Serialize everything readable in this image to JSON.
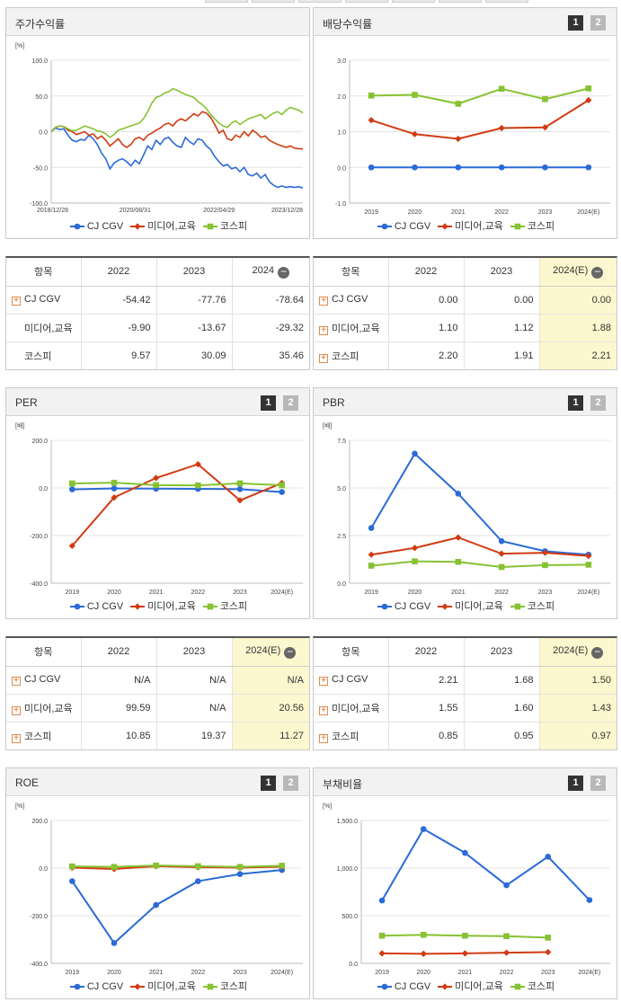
{
  "colors": {
    "cjcgv": "#2a6ad8",
    "media": "#d13b12",
    "kospi": "#86c232"
  },
  "legend": [
    "CJ CGV",
    "미디어,교육",
    "코스피"
  ],
  "stock_return": {
    "title": "주가수익률",
    "unit": "[%]",
    "table": {
      "header": [
        "항목",
        "2022",
        "2023",
        "2024"
      ],
      "rows": [
        {
          "name": "CJ CGV",
          "values": [
            "-54.42",
            "-77.76",
            "-78.64"
          ]
        },
        {
          "name": "미디어,교육",
          "values": [
            "-9.90",
            "-13.67",
            "-29.32"
          ]
        },
        {
          "name": "코스피",
          "values": [
            "9.57",
            "30.09",
            "35.46"
          ]
        }
      ]
    }
  },
  "dividend": {
    "title": "배당수익률",
    "table": {
      "header": [
        "항목",
        "2022",
        "2023",
        "2024(E)"
      ],
      "rows": [
        {
          "name": "CJ CGV",
          "values": [
            "0.00",
            "0.00",
            "0.00"
          ]
        },
        {
          "name": "미디어,교육",
          "values": [
            "1.10",
            "1.12",
            "1.88"
          ]
        },
        {
          "name": "코스피",
          "values": [
            "2.20",
            "1.91",
            "2.21"
          ]
        }
      ]
    }
  },
  "per": {
    "title": "PER",
    "unit": "[배]",
    "table": {
      "header": [
        "항목",
        "2022",
        "2023",
        "2024(E)"
      ],
      "rows": [
        {
          "name": "CJ CGV",
          "values": [
            "N/A",
            "N/A",
            "N/A"
          ]
        },
        {
          "name": "미디어,교육",
          "values": [
            "99.59",
            "N/A",
            "20.56"
          ]
        },
        {
          "name": "코스피",
          "values": [
            "10.85",
            "19.37",
            "11.27"
          ]
        }
      ]
    }
  },
  "pbr": {
    "title": "PBR",
    "unit": "[배]",
    "table": {
      "header": [
        "항목",
        "2022",
        "2023",
        "2024(E)"
      ],
      "rows": [
        {
          "name": "CJ CGV",
          "values": [
            "2.21",
            "1.68",
            "1.50"
          ]
        },
        {
          "name": "미디어,교육",
          "values": [
            "1.55",
            "1.60",
            "1.43"
          ]
        },
        {
          "name": "코스피",
          "values": [
            "0.85",
            "0.95",
            "0.97"
          ]
        }
      ]
    }
  },
  "roe": {
    "title": "ROE",
    "unit": "[%]"
  },
  "debt": {
    "title": "부채비율",
    "unit": "[%]"
  },
  "chart_data": [
    {
      "type": "line",
      "title": "주가수익률",
      "ylabel": "[%]",
      "ylim": [
        -100,
        100
      ],
      "yticks": [
        "100.0",
        "50.0",
        "0.0",
        "-50.0",
        "-100.0"
      ],
      "xticks": [
        "2018/12/28",
        "2020/08/31",
        "2022/04/29",
        "2023/12/28"
      ],
      "series": [
        {
          "name": "CJ CGV",
          "values": [
            0,
            5,
            3,
            4,
            -5,
            -12,
            -14,
            -11,
            -12,
            -5,
            -10,
            -18,
            -30,
            -38,
            -52,
            -44,
            -40,
            -38,
            -42,
            -48,
            -40,
            -45,
            -33,
            -20,
            -25,
            -12,
            -18,
            -10,
            -8,
            -15,
            -20,
            -22,
            -8,
            -14,
            -18,
            -10,
            -12,
            -20,
            -25,
            -35,
            -42,
            -48,
            -46,
            -52,
            -50,
            -56,
            -50,
            -60,
            -62,
            -58,
            -65,
            -60,
            -70,
            -75,
            -78,
            -76,
            -78,
            -77,
            -78,
            -77,
            -79
          ]
        },
        {
          "name": "미디어,교육",
          "values": [
            0,
            6,
            8,
            7,
            2,
            0,
            -4,
            -2,
            0,
            -5,
            -3,
            -10,
            -6,
            -12,
            -20,
            -15,
            -10,
            -18,
            -22,
            -18,
            -10,
            -8,
            -12,
            -5,
            -2,
            2,
            5,
            10,
            12,
            8,
            15,
            18,
            15,
            20,
            25,
            22,
            28,
            26,
            20,
            10,
            -2,
            2,
            -10,
            -12,
            -5,
            -8,
            0,
            -6,
            2,
            -2,
            -8,
            -6,
            -12,
            -15,
            -18,
            -20,
            -22,
            -20,
            -23,
            -24,
            -24
          ]
        },
        {
          "name": "코스피",
          "values": [
            0,
            6,
            8,
            7,
            4,
            1,
            2,
            5,
            8,
            6,
            4,
            1,
            0,
            -3,
            -8,
            -4,
            2,
            4,
            6,
            8,
            10,
            12,
            18,
            28,
            40,
            48,
            50,
            54,
            56,
            60,
            58,
            55,
            52,
            50,
            48,
            42,
            38,
            32,
            24,
            18,
            12,
            8,
            6,
            12,
            15,
            10,
            14,
            18,
            20,
            22,
            24,
            18,
            22,
            26,
            28,
            24,
            30,
            34,
            32,
            30,
            26
          ]
        }
      ]
    },
    {
      "type": "line",
      "title": "배당수익률",
      "ylim": [
        -1,
        3
      ],
      "yticks": [
        "3.0",
        "2.0",
        "1.0",
        "0.0",
        "-1.0"
      ],
      "categories": [
        "2019",
        "2020",
        "2021",
        "2022",
        "2023",
        "2024(E)"
      ],
      "series": [
        {
          "name": "CJ CGV",
          "values": [
            0.0,
            0.0,
            0.0,
            0.0,
            0.0,
            0.0
          ]
        },
        {
          "name": "미디어,교육",
          "values": [
            1.32,
            0.93,
            0.8,
            1.1,
            1.12,
            1.88
          ]
        },
        {
          "name": "코스피",
          "values": [
            2.01,
            2.03,
            1.78,
            2.2,
            1.91,
            2.21
          ]
        }
      ]
    },
    {
      "type": "line",
      "title": "PER",
      "ylabel": "[배]",
      "ylim": [
        -400,
        200
      ],
      "yticks": [
        "200.0",
        "0.0",
        "-200.0",
        "-400.0"
      ],
      "categories": [
        "2019",
        "2020",
        "2021",
        "2022",
        "2023",
        "2024(E)"
      ],
      "series": [
        {
          "name": "CJ CGV",
          "values": [
            -6,
            -2,
            -3,
            -4,
            -5,
            -17
          ]
        },
        {
          "name": "미디어,교육",
          "values": [
            -243,
            -40,
            42,
            99.59,
            -52,
            20.56
          ]
        },
        {
          "name": "코스피",
          "values": [
            19,
            22,
            12,
            10.85,
            19.37,
            11.27
          ]
        }
      ]
    },
    {
      "type": "line",
      "title": "PBR",
      "ylabel": "[배]",
      "ylim": [
        0,
        7.5
      ],
      "yticks": [
        "7.5",
        "5.0",
        "2.5",
        "0.0"
      ],
      "categories": [
        "2019",
        "2020",
        "2021",
        "2022",
        "2023",
        "2024(E)"
      ],
      "series": [
        {
          "name": "CJ CGV",
          "values": [
            2.9,
            6.8,
            4.7,
            2.21,
            1.68,
            1.5
          ]
        },
        {
          "name": "미디어,교육",
          "values": [
            1.5,
            1.85,
            2.4,
            1.55,
            1.6,
            1.43
          ]
        },
        {
          "name": "코스피",
          "values": [
            0.92,
            1.15,
            1.12,
            0.85,
            0.95,
            0.97
          ]
        }
      ]
    },
    {
      "type": "line",
      "title": "ROE",
      "ylabel": "[%]",
      "ylim": [
        -400,
        200
      ],
      "yticks": [
        "200.0",
        "0.0",
        "-200.0",
        "-400.0"
      ],
      "categories": [
        "2019",
        "2020",
        "2021",
        "2022",
        "2023",
        "2024(E)"
      ],
      "series": [
        {
          "name": "CJ CGV",
          "values": [
            -55,
            -315,
            -155,
            -55,
            -25,
            -8
          ]
        },
        {
          "name": "미디어,교육",
          "values": [
            2,
            -4,
            8,
            4,
            2,
            6
          ]
        },
        {
          "name": "코스피",
          "values": [
            7,
            5,
            11,
            8,
            5,
            10
          ]
        }
      ]
    },
    {
      "type": "line",
      "title": "부채비율",
      "ylabel": "[%]",
      "ylim": [
        0,
        1500
      ],
      "yticks": [
        "1,500.0",
        "1,000.0",
        "500.0",
        "0.0"
      ],
      "categories": [
        "2019",
        "2020",
        "2021",
        "2022",
        "2023",
        "2024(E)"
      ],
      "series": [
        {
          "name": "CJ CGV",
          "values": [
            660,
            1410,
            1160,
            820,
            1120,
            665
          ]
        },
        {
          "name": "미디어,교육",
          "values": [
            105,
            100,
            105,
            112,
            118,
            null
          ]
        },
        {
          "name": "코스피",
          "values": [
            290,
            300,
            290,
            285,
            270,
            null
          ]
        }
      ]
    }
  ]
}
